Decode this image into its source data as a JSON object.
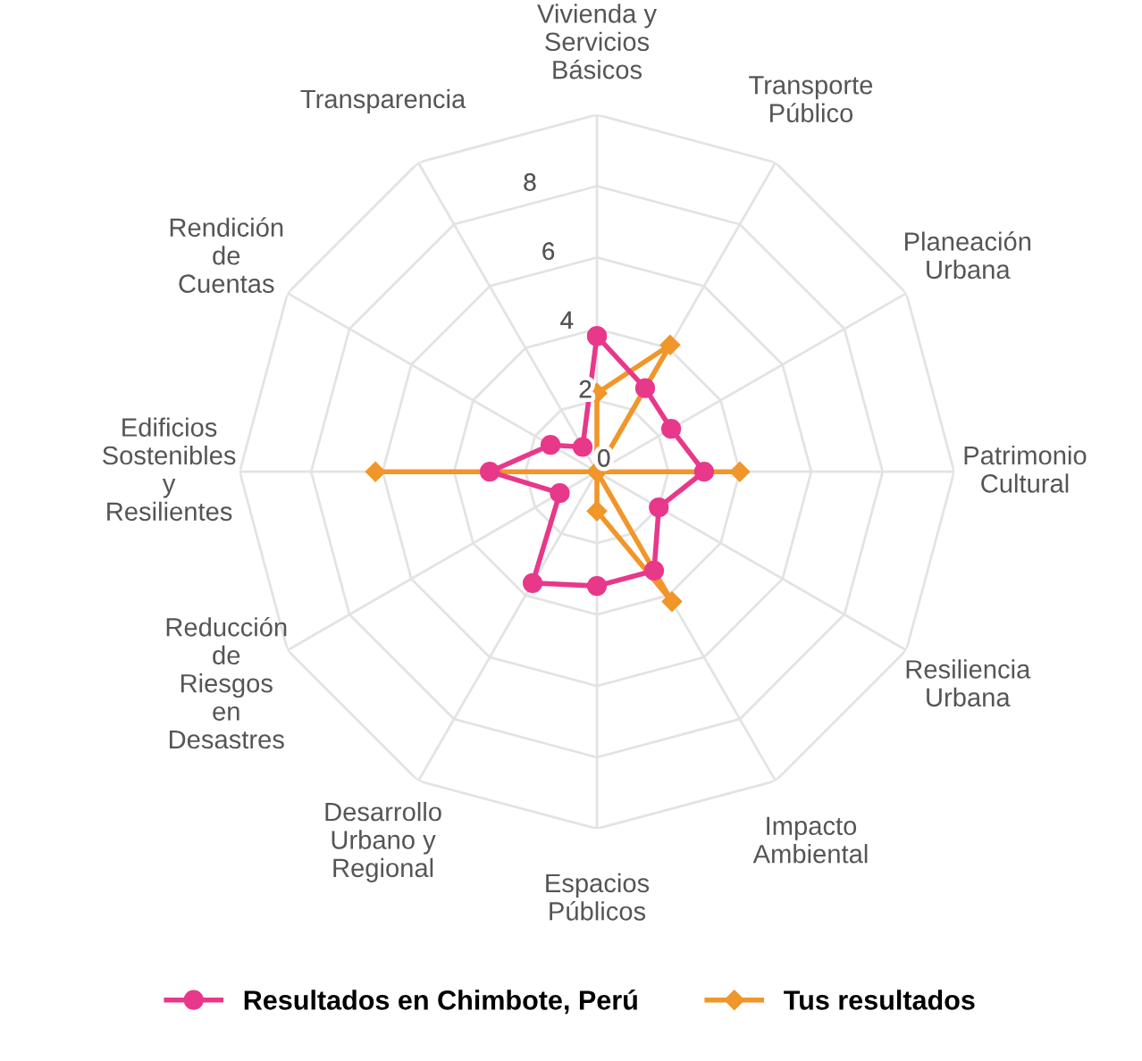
{
  "chart_data": {
    "type": "radar",
    "categories": [
      "Vivienda y\nServicios\nBásicos",
      "Transporte\nPúblico",
      "Planeación\nUrbana",
      "Patrimonio\nCultural",
      "Resiliencia\nUrbana",
      "Impacto\nAmbiental",
      "Espacios\nPúblicos",
      "Desarrollo\nUrbano y\nRegional",
      "Reducción\nde\nRiesgos\nen\nDesastres",
      "Edificios\nSostenibles\ny\nResilientes",
      "Rendición\nde\nCuentas",
      "Transparencia"
    ],
    "series": [
      {
        "name": "Resultados en Chimbote, Perú",
        "color": "#e8388a",
        "marker": "circle",
        "values": [
          3.8,
          2.7,
          2.4,
          3.0,
          2.0,
          3.2,
          3.2,
          3.6,
          1.2,
          3.0,
          1.5,
          0.8
        ]
      },
      {
        "name": "Tus resultados",
        "color": "#f0962a",
        "marker": "diamond",
        "values": [
          2.2,
          4.1,
          0,
          4.0,
          0,
          4.2,
          1.1,
          0,
          0,
          6.2,
          0,
          0
        ]
      }
    ],
    "ylim": [
      0,
      10
    ],
    "yticks": [
      0,
      2,
      4,
      6,
      8
    ],
    "grid": true,
    "legend": "bottom"
  }
}
